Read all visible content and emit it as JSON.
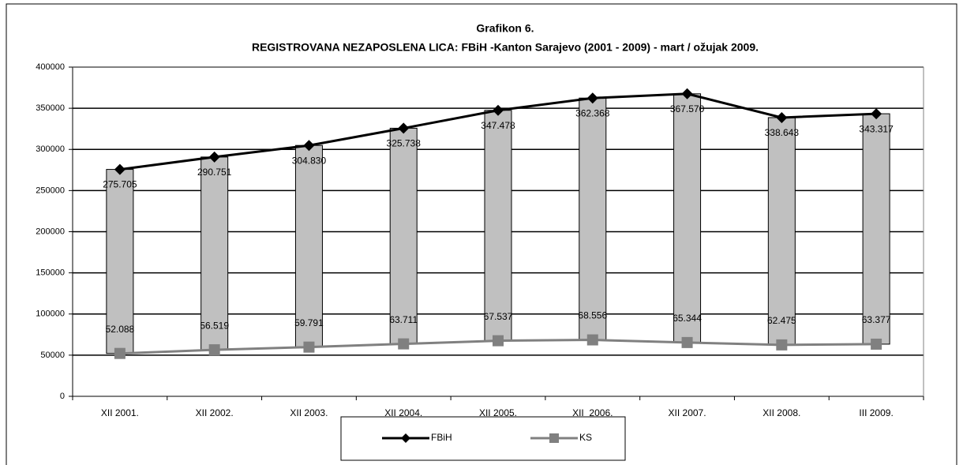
{
  "chart_data": {
    "type": "line",
    "title": "Grafikon 6.",
    "subtitle": "REGISTROVANA NEZAPOSLENA LICA: FBiH -Kanton Sarajevo (2001 - 2009) - mart / ožujak 2009.",
    "categories": [
      "XII 2001.",
      "XII 2002.",
      "XII 2003.",
      "XII 2004.",
      "XII 2005.",
      "XII  2006.",
      "XII 2007.",
      "XII 2008.",
      "III 2009."
    ],
    "series": [
      {
        "name": "FBiH",
        "color": "#000000",
        "marker": "diamond",
        "values": [
          275705,
          290751,
          304830,
          325738,
          347478,
          362368,
          367570,
          338643,
          343317
        ],
        "value_labels": [
          "275.705",
          "290.751",
          "304.830",
          "325.738",
          "347.478",
          "362.368",
          "367.570",
          "338.643",
          "343.317"
        ]
      },
      {
        "name": "KS",
        "color": "#808080",
        "marker": "square",
        "values": [
          52088,
          56519,
          59791,
          63711,
          67537,
          68556,
          65344,
          62475,
          63377
        ],
        "value_labels": [
          "52.088",
          "56.519",
          "59.791",
          "63.711",
          "67.537",
          "68.556",
          "65.344",
          "62.475",
          "63.377"
        ]
      }
    ],
    "bar_color": "#c0c0c0",
    "ylim": [
      0,
      400000
    ],
    "yticks": [
      0,
      50000,
      100000,
      150000,
      200000,
      250000,
      300000,
      350000,
      400000
    ],
    "grid": true,
    "legend": "bottom"
  }
}
